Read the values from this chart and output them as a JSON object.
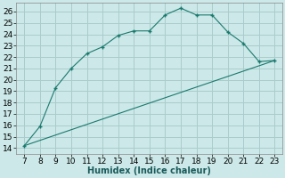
{
  "xlabel": "Humidex (Indice chaleur)",
  "background_color": "#cce8e8",
  "grid_color": "#aacccc",
  "line_color": "#1a7a6e",
  "curve_x": [
    7,
    8,
    9,
    10,
    11,
    12,
    13,
    14,
    15,
    16,
    17,
    18,
    19,
    20,
    21,
    22,
    23
  ],
  "curve_y": [
    14.2,
    15.9,
    19.3,
    21.0,
    22.3,
    22.9,
    23.9,
    24.3,
    24.3,
    25.7,
    26.3,
    25.7,
    25.7,
    24.2,
    23.2,
    21.6,
    21.7
  ],
  "line_x": [
    7,
    23
  ],
  "line_y": [
    14.2,
    21.7
  ],
  "xlim": [
    6.5,
    23.5
  ],
  "ylim": [
    13.5,
    26.8
  ],
  "xticks": [
    7,
    8,
    9,
    10,
    11,
    12,
    13,
    14,
    15,
    16,
    17,
    18,
    19,
    20,
    21,
    22,
    23
  ],
  "yticks": [
    14,
    15,
    16,
    17,
    18,
    19,
    20,
    21,
    22,
    23,
    24,
    25,
    26
  ],
  "label_fontsize": 7,
  "tick_fontsize": 6.5
}
